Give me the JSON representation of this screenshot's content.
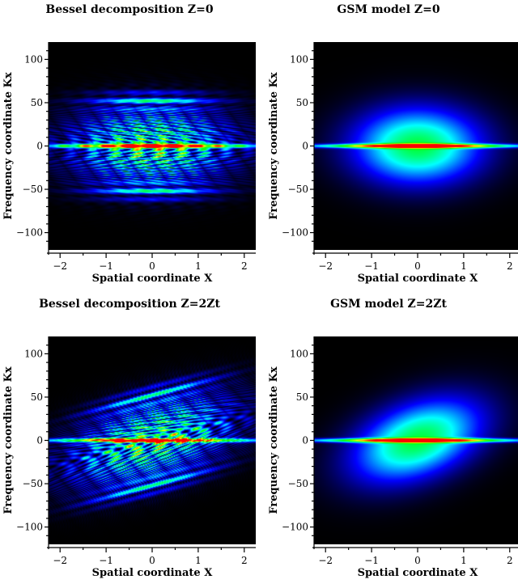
{
  "figure": {
    "background": "#ffffff",
    "plot_background": "#000000"
  },
  "chart_data": [
    {
      "type": "heatmap",
      "title": "Bessel decomposition  Z=0",
      "xlabel": "Spatial coordinate X",
      "ylabel": "Frequency coordinate Kx",
      "xlim": [
        -2.25,
        2.25
      ],
      "ylim": [
        -120,
        120
      ],
      "xticks": [
        -2,
        -1,
        0,
        1,
        2
      ],
      "yticks": [
        100,
        50,
        0,
        -50,
        -100
      ],
      "tilt": 0,
      "pattern": "interference-fringes",
      "colormap": [
        "#000000",
        "#0000ff",
        "#00ffff",
        "#00ff00",
        "#ffff00",
        "#ff0000"
      ]
    },
    {
      "type": "heatmap",
      "title": "GSM model  Z=0",
      "xlabel": "Spatial coordinate X",
      "ylabel": "Frequency coordinate Kx",
      "xlim": [
        -2.25,
        2.25
      ],
      "ylim": [
        -120,
        120
      ],
      "xticks": [
        -2,
        -1,
        0,
        1,
        2
      ],
      "yticks": [
        100,
        50,
        0,
        -50,
        -100
      ],
      "tilt": 0,
      "pattern": "smooth-gaussian",
      "colormap": [
        "#000000",
        "#0000ff",
        "#00ffff",
        "#00ff00",
        "#ffff00",
        "#ff0000"
      ]
    },
    {
      "type": "heatmap",
      "title": "Bessel decomposition  Z=2Zt",
      "xlabel": "Spatial coordinate X",
      "ylabel": "Frequency coordinate Kx",
      "xlim": [
        -2.25,
        2.25
      ],
      "ylim": [
        -120,
        120
      ],
      "xticks": [
        -2,
        -1,
        0,
        1,
        2
      ],
      "yticks": [
        100,
        50,
        0,
        -50,
        -100
      ],
      "tilt": 0.35,
      "pattern": "interference-fringes",
      "colormap": [
        "#000000",
        "#0000ff",
        "#00ffff",
        "#00ff00",
        "#ffff00",
        "#ff0000"
      ]
    },
    {
      "type": "heatmap",
      "title": "GSM model  Z=2Zt",
      "xlabel": "Spatial coordinate X",
      "ylabel": "Frequency coordinate Kx",
      "xlim": [
        -2.25,
        2.25
      ],
      "ylim": [
        -120,
        120
      ],
      "xticks": [
        -2,
        -1,
        0,
        1,
        2
      ],
      "yticks": [
        100,
        50,
        0,
        -50,
        -100
      ],
      "tilt": 0.35,
      "pattern": "smooth-gaussian",
      "colormap": [
        "#000000",
        "#0000ff",
        "#00ffff",
        "#00ff00",
        "#ffff00",
        "#ff0000"
      ]
    }
  ]
}
